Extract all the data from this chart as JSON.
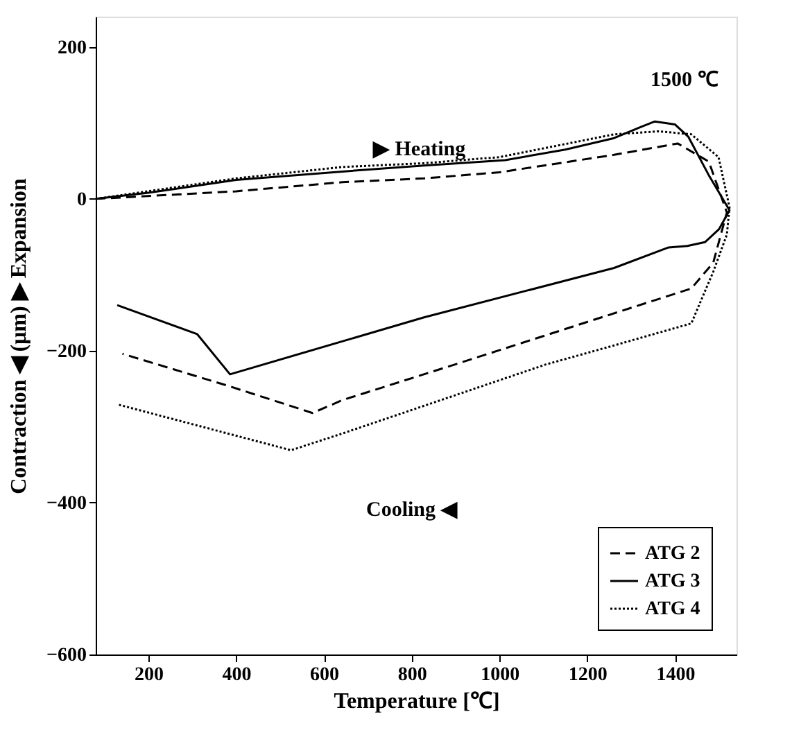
{
  "chart_data": {
    "type": "line",
    "xlabel": "Temperature [℃]",
    "ylabel": "Contraction ◀ (μm) ▶ Expansion",
    "xlim": [
      80,
      1540
    ],
    "xticks": [
      200,
      400,
      600,
      800,
      1000,
      1200,
      1400
    ],
    "ylim": [
      -600,
      240
    ],
    "yticks": [
      -600,
      -400,
      -200,
      0,
      200
    ],
    "grid": false,
    "legend": "bottom right",
    "marker": "none",
    "series": [
      {
        "name": "ATG 2",
        "color": "#000000",
        "line_style": "dashed",
        "x": [
          80,
          400,
          642,
          828,
          1000,
          1261,
          1406,
          1477,
          1518,
          1487,
          1437,
          899,
          642,
          574,
          386,
          141
        ],
        "values": [
          0,
          10,
          22,
          27,
          35,
          58,
          73,
          49,
          -18,
          -84,
          -118,
          -218,
          -265,
          -282,
          -247,
          -204
        ]
      },
      {
        "name": "ATG 3",
        "color": "#000000",
        "line_style": "solid",
        "x": [
          80,
          200,
          400,
          642,
          828,
          1013,
          1150,
          1261,
          1323,
          1354,
          1400,
          1430,
          1477,
          1524,
          1500,
          1468,
          1428,
          1385,
          1261,
          828,
          386,
          311,
          129
        ],
        "values": [
          0,
          8,
          25,
          36,
          44,
          51,
          65,
          80,
          95,
          102,
          98,
          82,
          31,
          -15,
          -40,
          -57,
          -62,
          -64,
          -91,
          -156,
          -231,
          -178,
          -140
        ]
      },
      {
        "name": "ATG 4",
        "color": "#000000",
        "line_style": "dotted",
        "x": [
          80,
          400,
          642,
          828,
          1000,
          1261,
          1363,
          1437,
          1499,
          1524,
          1518,
          1487,
          1437,
          1261,
          1106,
          642,
          525,
          132
        ],
        "values": [
          0,
          27,
          42,
          47,
          55,
          85,
          89,
          85,
          55,
          -11,
          -47,
          -96,
          -164,
          -193,
          -218,
          -309,
          -331,
          -271
        ]
      }
    ],
    "annotations": [
      "1500 ℃",
      "▶ Heating",
      "Cooling ◀"
    ]
  }
}
